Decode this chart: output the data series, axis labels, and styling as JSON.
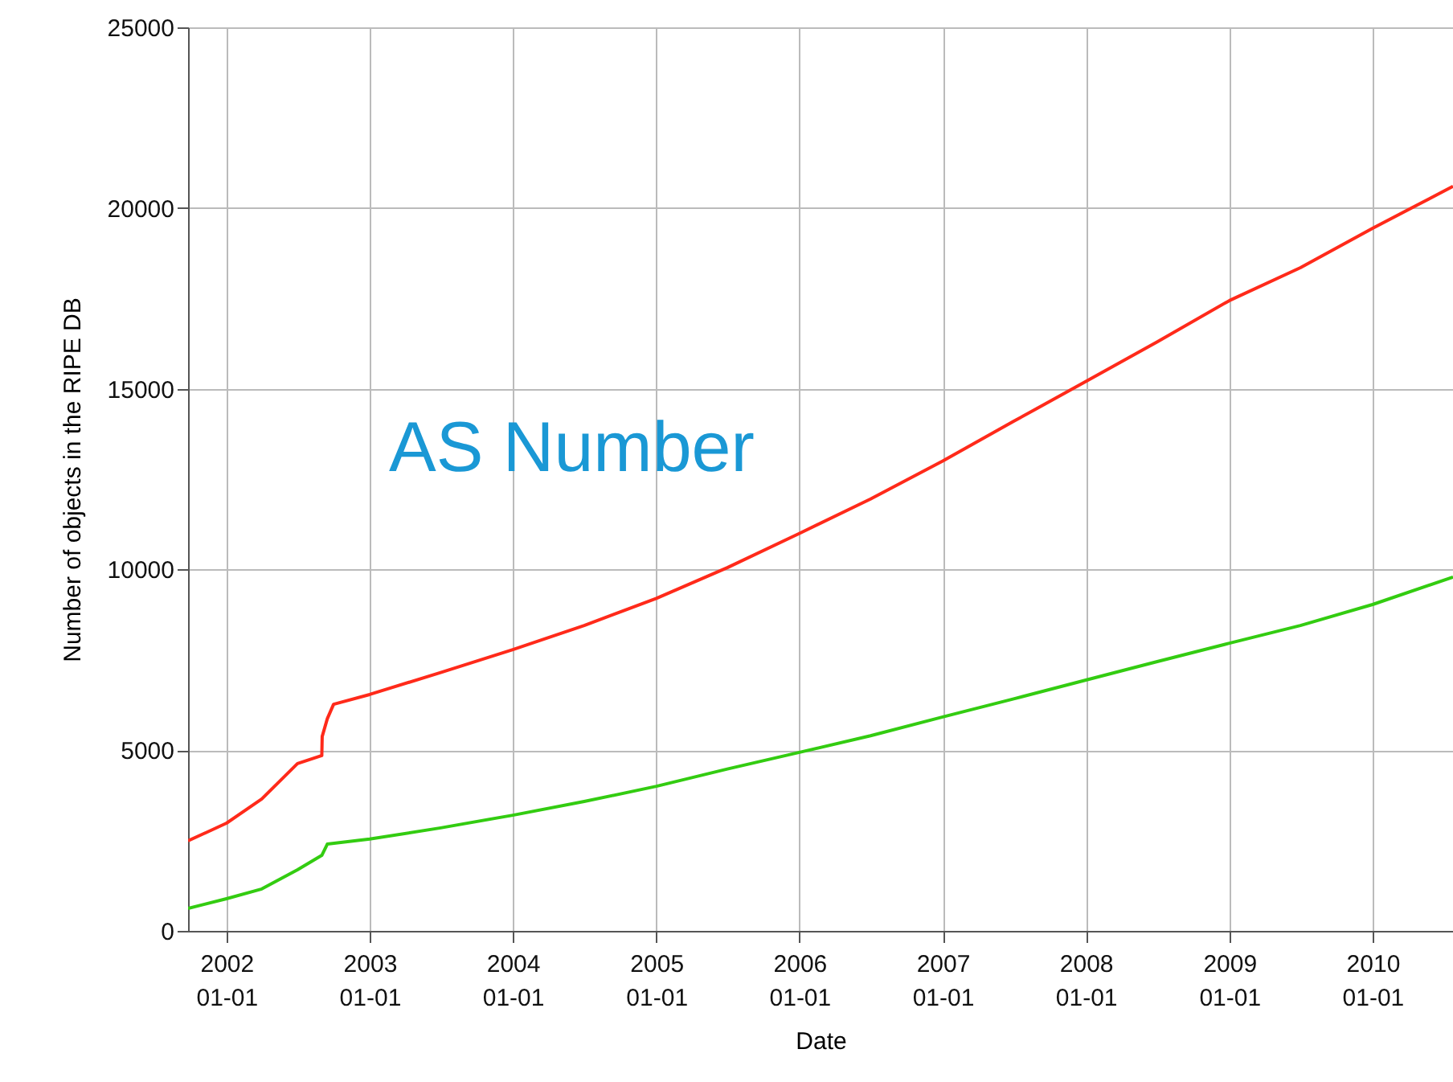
{
  "chart_data": {
    "type": "line",
    "xlabel": "Date",
    "ylabel": "Number of objects in the RIPE DB",
    "annotations": [
      "AS Number"
    ],
    "xlim": [
      "2001-09-25",
      "2010-07-25"
    ],
    "ylim": [
      0,
      25000
    ],
    "yticks": [
      0,
      5000,
      10000,
      15000,
      20000,
      25000
    ],
    "xticks": [
      {
        "value": "2002-01-01",
        "label": "2002\n01-01"
      },
      {
        "value": "2003-01-01",
        "label": "2003\n01-01"
      },
      {
        "value": "2004-01-01",
        "label": "2004\n01-01"
      },
      {
        "value": "2005-01-01",
        "label": "2005\n01-01"
      },
      {
        "value": "2006-01-01",
        "label": "2006\n01-01"
      },
      {
        "value": "2007-01-01",
        "label": "2007\n01-01"
      },
      {
        "value": "2008-01-01",
        "label": "2008\n01-01"
      },
      {
        "value": "2009-01-01",
        "label": "2009\n01-01"
      },
      {
        "value": "2010-01-01",
        "label": "2010\n01-01"
      }
    ],
    "grid": true,
    "series": [
      {
        "color": "#ff2a1a",
        "x": [
          "2001-09-25",
          "2002-01-01",
          "2002-04-01",
          "2002-07-01",
          "2002-09-01",
          "2002-09-02",
          "2002-09-15",
          "2002-10-01",
          "2003-01-01",
          "2003-07-01",
          "2004-01-01",
          "2004-07-01",
          "2005-01-01",
          "2005-07-01",
          "2006-01-01",
          "2006-07-01",
          "2007-01-01",
          "2007-07-01",
          "2008-01-01",
          "2008-07-01",
          "2009-01-01",
          "2009-07-01",
          "2010-01-01",
          "2010-07-25"
        ],
        "values": [
          2490,
          2980,
          3650,
          4630,
          4850,
          5380,
          5870,
          6270,
          6540,
          7150,
          7780,
          8450,
          9200,
          10050,
          11000,
          11950,
          13000,
          14100,
          15200,
          16300,
          17440,
          18350,
          19440,
          20600
        ]
      },
      {
        "color": "#33cc11",
        "x": [
          "2001-09-25",
          "2002-01-01",
          "2002-04-01",
          "2002-07-01",
          "2002-09-01",
          "2002-09-15",
          "2003-01-01",
          "2003-07-01",
          "2004-01-01",
          "2004-07-01",
          "2005-01-01",
          "2005-07-01",
          "2006-01-01",
          "2006-07-01",
          "2007-01-01",
          "2007-07-01",
          "2008-01-01",
          "2008-07-01",
          "2009-01-01",
          "2009-07-01",
          "2010-01-01",
          "2010-07-25"
        ],
        "values": [
          620,
          890,
          1160,
          1690,
          2090,
          2400,
          2540,
          2850,
          3200,
          3580,
          4000,
          4480,
          4940,
          5400,
          5920,
          6420,
          6940,
          7450,
          7960,
          8450,
          9030,
          9790
        ]
      }
    ]
  }
}
